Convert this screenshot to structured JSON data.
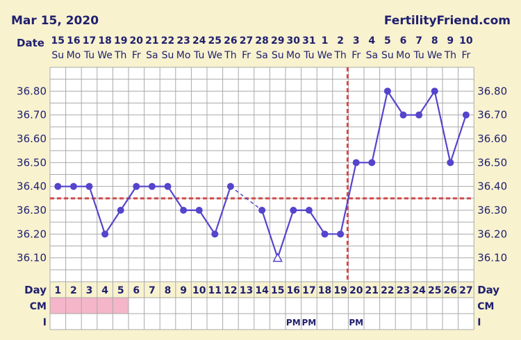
{
  "header": {
    "date": "Mar 15, 2020",
    "site": "FertilityFriend.com"
  },
  "labels": {
    "date_row": "Date",
    "day_row": "Day",
    "cm_row": "CM",
    "i_row": "I"
  },
  "colors": {
    "background": "#f8f2cf",
    "grid_bg": "#ffffff",
    "grid_line": "#a9a9a9",
    "line": "#5544cc",
    "coverline": "#d24a4a",
    "text": "#1f1f6e",
    "cm_fill": "#f4b6c8"
  },
  "chart_data": {
    "type": "line",
    "title": "",
    "x_dates": [
      "15",
      "16",
      "17",
      "18",
      "19",
      "20",
      "21",
      "22",
      "23",
      "24",
      "25",
      "26",
      "27",
      "28",
      "29",
      "30",
      "31",
      "1",
      "2",
      "3",
      "4",
      "5",
      "6",
      "7",
      "8",
      "9",
      "10"
    ],
    "x_weekdays": [
      "Su",
      "Mo",
      "Tu",
      "We",
      "Th",
      "Fr",
      "Sa",
      "Su",
      "Mo",
      "Tu",
      "We",
      "Th",
      "Fr",
      "Sa",
      "Su",
      "Mo",
      "Tu",
      "We",
      "Th",
      "Fr",
      "Sa",
      "Su",
      "Mo",
      "Tu",
      "We",
      "Th",
      "Fr"
    ],
    "cycle_days": [
      1,
      2,
      3,
      4,
      5,
      6,
      7,
      8,
      9,
      10,
      11,
      12,
      13,
      14,
      15,
      16,
      17,
      18,
      19,
      20,
      21,
      22,
      23,
      24,
      25,
      26,
      27
    ],
    "temperatures": [
      36.4,
      36.4,
      36.4,
      36.2,
      36.3,
      36.4,
      36.4,
      36.4,
      36.3,
      36.3,
      36.2,
      36.4,
      null,
      36.3,
      36.1,
      36.3,
      36.3,
      36.2,
      36.2,
      36.5,
      36.5,
      36.8,
      36.7,
      36.7,
      36.8,
      36.5,
      36.7
    ],
    "discarded_day": 15,
    "y_ticks": [
      36.8,
      36.7,
      36.6,
      36.5,
      36.4,
      36.3,
      36.2,
      36.1
    ],
    "y_range": [
      36.0,
      36.9
    ],
    "coverline": 36.35,
    "ovulation_day": 19,
    "cm_days": [
      1,
      2,
      3,
      4,
      5
    ],
    "intercourse": [
      {
        "day": 16,
        "label": "PM"
      },
      {
        "day": 17,
        "label": "PM"
      },
      {
        "day": 20,
        "label": "PM"
      }
    ]
  }
}
